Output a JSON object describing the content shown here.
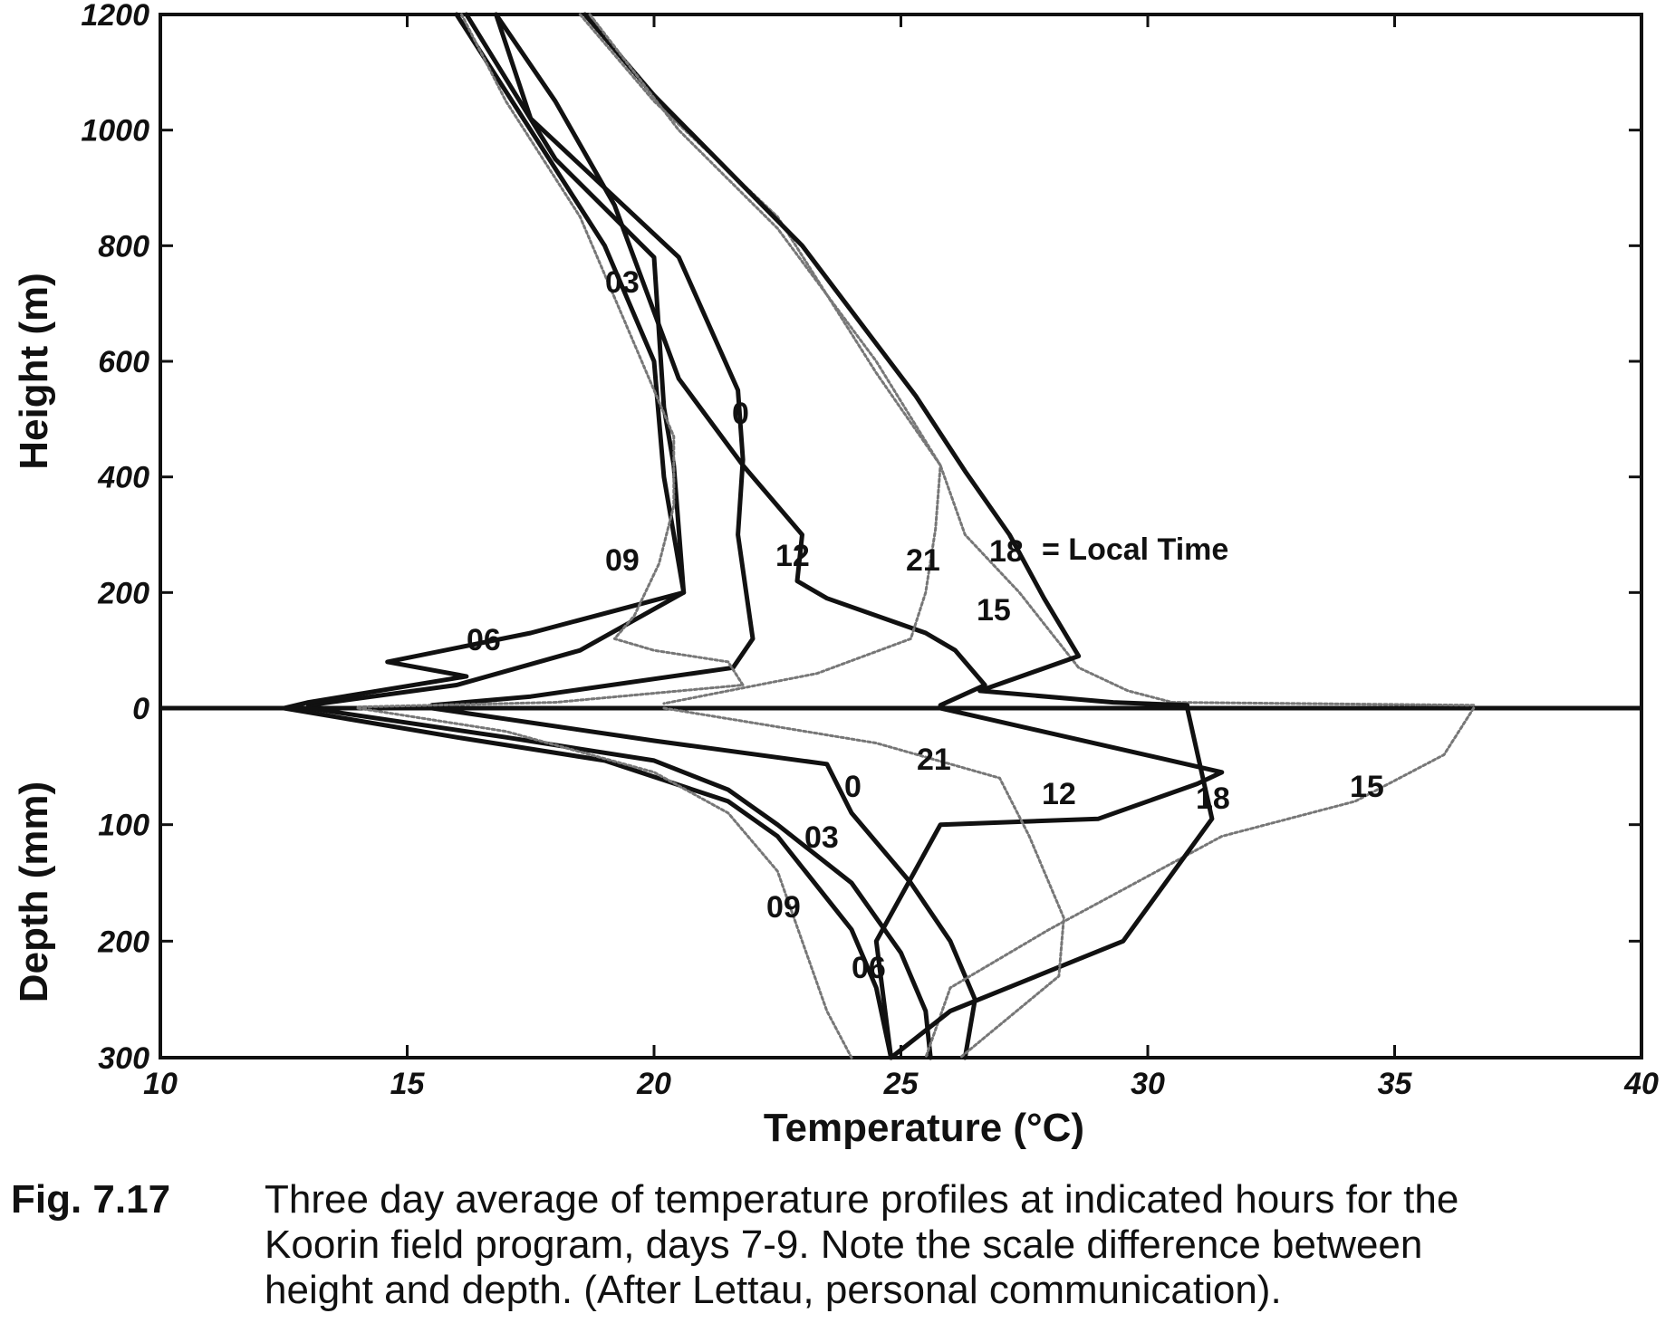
{
  "chart_data": {
    "type": "line",
    "title": "",
    "xlabel": "Temperature (°C)",
    "ylabel_upper": "Height (m)",
    "ylabel_lower": "Depth (mm)",
    "xlim": [
      10,
      40
    ],
    "height_lim": [
      0,
      1200
    ],
    "depth_lim": [
      0,
      300
    ],
    "x_ticks": [
      "10",
      "15",
      "20",
      "25",
      "30",
      "35",
      "40"
    ],
    "height_ticks": [
      {
        "value": 0,
        "label": "0"
      },
      {
        "value": 200,
        "label": "200"
      },
      {
        "value": 400,
        "label": "400"
      },
      {
        "value": 600,
        "label": "600"
      },
      {
        "value": 800,
        "label": "800"
      },
      {
        "value": 1000,
        "label": "1000"
      },
      {
        "value": 1200,
        "label": "1200"
      }
    ],
    "depth_ticks": [
      {
        "value": 100,
        "label": "100"
      },
      {
        "value": 200,
        "label": "200"
      },
      {
        "value": 300,
        "label": "300"
      }
    ],
    "grid": false,
    "legend": "none",
    "series": [
      {
        "label_text": "0",
        "color": "#111111",
        "dashed": false,
        "upper": [
          [
            16.8,
            1200
          ],
          [
            17.5,
            1020
          ],
          [
            20.5,
            780
          ],
          [
            21.7,
            550
          ],
          [
            21.8,
            430
          ],
          [
            21.7,
            300
          ],
          [
            22,
            120
          ],
          [
            21.6,
            70
          ],
          [
            17.5,
            20
          ],
          [
            15.5,
            5
          ]
        ],
        "lower": [
          [
            15.5,
            0
          ],
          [
            20,
            28
          ],
          [
            23.5,
            48
          ],
          [
            24,
            90
          ],
          [
            25.2,
            150
          ],
          [
            26,
            200
          ],
          [
            26.5,
            250
          ],
          [
            26.3,
            300
          ]
        ]
      },
      {
        "label_text": "03",
        "color": "#111111",
        "dashed": false,
        "upper": [
          [
            16.2,
            1200
          ],
          [
            18,
            950
          ],
          [
            20,
            780
          ],
          [
            20.2,
            520
          ],
          [
            20.4,
            420
          ],
          [
            20.6,
            200
          ],
          [
            18.5,
            100
          ],
          [
            16,
            40
          ],
          [
            13,
            5
          ]
        ],
        "lower": [
          [
            13,
            0
          ],
          [
            17,
            25
          ],
          [
            20,
            45
          ],
          [
            21.5,
            70
          ],
          [
            22.5,
            100
          ],
          [
            24,
            150
          ],
          [
            25,
            210
          ],
          [
            25.5,
            260
          ],
          [
            25.6,
            300
          ]
        ]
      },
      {
        "label_text": "06",
        "color": "#111111",
        "dashed": false,
        "upper": [
          [
            16,
            1200
          ],
          [
            17.5,
            1000
          ],
          [
            19,
            800
          ],
          [
            20,
            600
          ],
          [
            20.2,
            400
          ],
          [
            20.6,
            200
          ],
          [
            17.5,
            130
          ],
          [
            14.6,
            80
          ],
          [
            16.2,
            55
          ],
          [
            13,
            10
          ],
          [
            12.5,
            0
          ]
        ],
        "lower": [
          [
            12.5,
            0
          ],
          [
            16,
            25
          ],
          [
            19,
            45
          ],
          [
            21.5,
            80
          ],
          [
            22.5,
            110
          ],
          [
            24,
            190
          ],
          [
            24.5,
            240
          ],
          [
            24.8,
            300
          ]
        ]
      },
      {
        "label_text": "09",
        "color": "#777777",
        "dashed": true,
        "upper": [
          [
            16.1,
            1200
          ],
          [
            17,
            1050
          ],
          [
            18.5,
            850
          ],
          [
            19.5,
            650
          ],
          [
            20.4,
            470
          ],
          [
            20.4,
            350
          ],
          [
            20.1,
            250
          ],
          [
            19.6,
            160
          ],
          [
            19.2,
            120
          ],
          [
            20,
            100
          ],
          [
            21.5,
            80
          ],
          [
            21.8,
            40
          ],
          [
            18,
            10
          ],
          [
            14,
            2
          ]
        ],
        "lower": [
          [
            14,
            0
          ],
          [
            17,
            20
          ],
          [
            20,
            55
          ],
          [
            21.5,
            90
          ],
          [
            22.5,
            140
          ],
          [
            23,
            200
          ],
          [
            23.5,
            260
          ],
          [
            24,
            300
          ]
        ]
      },
      {
        "label_text": "12",
        "color": "#111111",
        "dashed": false,
        "upper": [
          [
            16.8,
            1200
          ],
          [
            18,
            1050
          ],
          [
            19.2,
            870
          ],
          [
            20.5,
            570
          ],
          [
            21.8,
            420
          ],
          [
            23,
            300
          ],
          [
            22.9,
            220
          ],
          [
            23.5,
            190
          ],
          [
            25.5,
            130
          ],
          [
            26.1,
            100
          ],
          [
            26.7,
            40
          ],
          [
            25.8,
            5
          ]
        ],
        "lower": [
          [
            25.8,
            0
          ],
          [
            31.5,
            55
          ],
          [
            31,
            65
          ],
          [
            29,
            95
          ],
          [
            25.8,
            100
          ],
          [
            24.5,
            200
          ],
          [
            24.8,
            300
          ]
        ]
      },
      {
        "label_text": "15",
        "color": "#777777",
        "dashed": true,
        "upper": [
          [
            18.5,
            1200
          ],
          [
            20,
            1050
          ],
          [
            22.5,
            850
          ],
          [
            24.5,
            580
          ],
          [
            25.8,
            420
          ],
          [
            26.3,
            300
          ],
          [
            27.4,
            200
          ],
          [
            28.6,
            70
          ],
          [
            29.6,
            30
          ],
          [
            30.5,
            10
          ],
          [
            36.6,
            5
          ]
        ],
        "lower": [
          [
            36.6,
            0
          ],
          [
            36,
            40
          ],
          [
            34.2,
            80
          ],
          [
            31.5,
            110
          ],
          [
            28,
            190
          ],
          [
            26,
            240
          ],
          [
            25.5,
            300
          ]
        ]
      },
      {
        "label_text": "18",
        "color": "#111111",
        "dashed": false,
        "upper": [
          [
            18.6,
            1200
          ],
          [
            20,
            1060
          ],
          [
            23,
            800
          ],
          [
            25.3,
            540
          ],
          [
            26.3,
            410
          ],
          [
            27.2,
            300
          ],
          [
            27.9,
            190
          ],
          [
            28.6,
            90
          ],
          [
            26.6,
            30
          ],
          [
            29.3,
            10
          ],
          [
            30.8,
            5
          ]
        ],
        "lower": [
          [
            30.8,
            0
          ],
          [
            31.3,
            95
          ],
          [
            29.5,
            200
          ],
          [
            26,
            260
          ],
          [
            24.8,
            300
          ]
        ]
      },
      {
        "label_text": "21",
        "color": "#777777",
        "dashed": true,
        "upper": [
          [
            18.7,
            1200
          ],
          [
            20.5,
            1000
          ],
          [
            22.5,
            830
          ],
          [
            24.5,
            600
          ],
          [
            25.8,
            420
          ],
          [
            25.7,
            310
          ],
          [
            25.5,
            200
          ],
          [
            25.2,
            120
          ],
          [
            23.3,
            60
          ],
          [
            21.5,
            30
          ],
          [
            20.2,
            8
          ]
        ],
        "lower": [
          [
            20.2,
            0
          ],
          [
            24.5,
            30
          ],
          [
            27,
            60
          ],
          [
            27.6,
            110
          ],
          [
            28.3,
            180
          ],
          [
            28.2,
            230
          ],
          [
            26.2,
            300
          ]
        ]
      }
    ]
  },
  "labels": {
    "local_time": "= Local Time"
  },
  "caption": {
    "fig_num": "Fig. 7.17",
    "text": "Three day average of temperature profiles at indicated hours for the\nKoorin field program, days 7-9.  Note the scale difference between\nheight and depth.  (After Lettau, personal communication)."
  }
}
